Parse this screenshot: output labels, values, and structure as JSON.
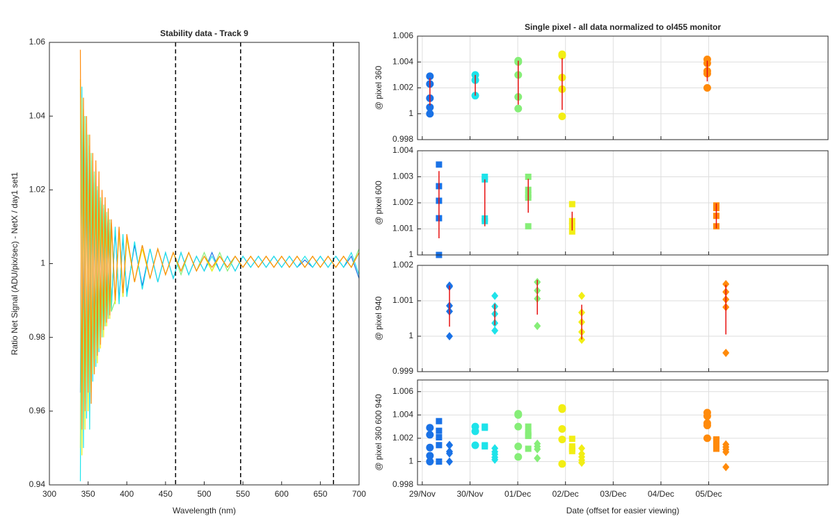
{
  "chart_data": [
    {
      "type": "line",
      "title": "Stability data - Track 9",
      "xlabel": "Wavelength (nm)",
      "ylabel": "Ratio Net Signal (ADU/pix/sec) - NetX / day1 set1",
      "xlim": [
        300,
        700
      ],
      "ylim": [
        0.94,
        1.06
      ],
      "xticks": [
        300,
        350,
        400,
        450,
        500,
        550,
        600,
        650,
        700
      ],
      "yticks": [
        0.94,
        0.96,
        0.98,
        1,
        1.02,
        1.04,
        1.06
      ],
      "grid": false,
      "vlines": [
        463,
        547,
        667
      ],
      "x": [
        340,
        342,
        344,
        346,
        348,
        350,
        352,
        354,
        356,
        358,
        360,
        362,
        364,
        366,
        368,
        370,
        372,
        374,
        376,
        378,
        380,
        385,
        390,
        395,
        400,
        410,
        420,
        430,
        440,
        450,
        460,
        470,
        480,
        490,
        500,
        510,
        520,
        530,
        540,
        550,
        560,
        570,
        580,
        590,
        600,
        610,
        620,
        630,
        640,
        650,
        660,
        670,
        680,
        690,
        700
      ],
      "series": [
        {
          "color": "#1a72e6",
          "values": [
            0.965,
            1.04,
            0.97,
            1.035,
            0.962,
            1.03,
            0.972,
            1.025,
            0.975,
            1.022,
            0.978,
            1.02,
            0.98,
            1.017,
            0.982,
            1.015,
            0.984,
            1.013,
            0.986,
            1.011,
            0.988,
            1.009,
            0.99,
            1.007,
            0.992,
            1.005,
            0.994,
            1.004,
            0.995,
            1.003,
            0.996,
            1.003,
            0.997,
            1.002,
            0.998,
            1.003,
            0.998,
            1.002,
            0.998,
            1.002,
            0.999,
            1.002,
            0.999,
            1.002,
            0.999,
            1.002,
            0.999,
            1.001,
            0.999,
            1.002,
            0.999,
            1.002,
            0.999,
            1.002,
            0.996
          ]
        },
        {
          "color": "#1ee3ea",
          "values": [
            0.941,
            1.048,
            0.95,
            1.04,
            0.958,
            1.032,
            0.955,
            1.028,
            0.968,
            1.024,
            0.972,
            1.02,
            0.976,
            1.018,
            0.98,
            1.015,
            0.983,
            1.013,
            0.985,
            1.011,
            0.987,
            1.01,
            0.989,
            1.008,
            0.991,
            1.006,
            0.993,
            1.004,
            0.995,
            1.003,
            0.996,
            1.003,
            0.997,
            1.002,
            0.998,
            1.002,
            0.998,
            1.002,
            0.998,
            1.002,
            0.999,
            1.002,
            0.999,
            1.002,
            0.999,
            1.002,
            0.999,
            1.002,
            0.999,
            1.002,
            0.999,
            1.002,
            0.999,
            1.003,
            0.997
          ]
        },
        {
          "color": "#86ee78",
          "values": [
            0.95,
            1.045,
            0.955,
            1.04,
            0.96,
            1.035,
            0.965,
            1.03,
            0.97,
            1.025,
            0.974,
            1.021,
            0.977,
            1.018,
            0.98,
            1.016,
            0.983,
            1.014,
            0.985,
            1.012,
            0.987,
            0.99,
            1.009,
            0.991,
            1.007,
            0.995,
            1.005,
            0.996,
            1.004,
            0.997,
            1.003,
            0.997,
            1.003,
            0.998,
            1.003,
            0.998,
            1.003,
            0.998,
            1.002,
            0.999,
            1.002,
            0.999,
            1.002,
            0.999,
            1.002,
            0.999,
            1.002,
            0.999,
            1.002,
            0.999,
            1.002,
            0.999,
            1.002,
            0.999,
            1.004
          ]
        },
        {
          "color": "#f2ee14",
          "values": [
            1.05,
            0.948,
            1.042,
            0.955,
            1.038,
            0.96,
            1.032,
            0.965,
            1.028,
            0.97,
            1.024,
            0.973,
            1.02,
            0.977,
            1.018,
            0.98,
            1.015,
            0.983,
            1.013,
            0.985,
            1.011,
            0.989,
            1.009,
            0.991,
            1.007,
            0.995,
            1.004,
            0.996,
            1.004,
            0.997,
            1.003,
            0.998,
            1.003,
            0.998,
            1.002,
            0.998,
            1.002,
            0.999,
            1.002,
            0.999,
            1.002,
            0.999,
            1.002,
            0.999,
            1.002,
            0.999,
            1.002,
            0.999,
            1.002,
            0.999,
            1.002,
            0.999,
            1.002,
            0.999,
            1.003
          ]
        },
        {
          "color": "#ff8a0a",
          "values": [
            1.058,
            0.955,
            1.045,
            0.96,
            1.04,
            0.965,
            1.035,
            0.962,
            1.03,
            0.97,
            1.028,
            0.975,
            1.025,
            0.978,
            1.02,
            0.982,
            1.018,
            0.984,
            1.015,
            0.986,
            1.012,
            0.99,
            1.01,
            0.992,
            1.008,
            0.995,
            1.005,
            0.996,
            1.004,
            0.997,
            1.003,
            0.998,
            1.003,
            0.998,
            1.002,
            0.999,
            1.002,
            0.999,
            1.002,
            0.999,
            1.002,
            0.999,
            1.002,
            0.999,
            1.002,
            0.999,
            1.002,
            0.999,
            1.002,
            0.999,
            1.002,
            0.999,
            1.002,
            0.999,
            1.003
          ]
        }
      ]
    },
    {
      "type": "scatter",
      "title": "Single pixel - all data normalized to ol455 monitor",
      "ylabel": "@ pixel 360",
      "marker": "circle",
      "ylim": [
        0.998,
        1.006
      ],
      "yticks": [
        0.998,
        1,
        1.002,
        1.004,
        1.006
      ],
      "grid": true,
      "errorbar_color": "#e81010",
      "series": [
        {
          "color": "#1a72e6",
          "x": 0.16,
          "values": [
            1.0029,
            1.0023,
            1.0012,
            1.0005,
            1.0
          ],
          "mean": 1.0017,
          "error": 0.00105
        },
        {
          "color": "#1ee3ea",
          "x": 1.11,
          "values": [
            1.003,
            1.0026,
            1.0014
          ],
          "mean": 1.0022,
          "error": 0.0008
        },
        {
          "color": "#86ee78",
          "x": 2.01,
          "values": [
            1.0041,
            1.004,
            1.003,
            1.0013,
            1.0004
          ],
          "mean": 1.0024,
          "error": 0.0017
        },
        {
          "color": "#f2ee14",
          "x": 2.93,
          "values": [
            1.0046,
            1.0045,
            1.0028,
            1.0019,
            0.9998
          ],
          "mean": 1.0023,
          "error": 0.002
        },
        {
          "color": "#ff8a0a",
          "x": 5.97,
          "values": [
            1.0042,
            1.0039,
            1.0033,
            1.0031,
            1.002
          ],
          "mean": 1.0033,
          "error": 0.0008
        }
      ]
    },
    {
      "type": "scatter",
      "ylabel": "@ pixel 600",
      "marker": "square",
      "ylim": [
        1,
        1.004
      ],
      "yticks": [
        1,
        1.001,
        1.002,
        1.003,
        1.004
      ],
      "grid": true,
      "errorbar_color": "#e81010",
      "series": [
        {
          "color": "#1a72e6",
          "x": 0.35,
          "values": [
            1.00347,
            1.00264,
            1.00208,
            1.00141,
            1.0
          ],
          "mean": 1.00193,
          "error": 0.00129
        },
        {
          "color": "#1ee3ea",
          "x": 1.31,
          "values": [
            1.003,
            1.0029,
            1.0014,
            1.0013
          ],
          "mean": 1.002,
          "error": 0.0009
        },
        {
          "color": "#86ee78",
          "x": 2.22,
          "values": [
            1.003,
            1.0025,
            1.0023,
            1.0022,
            1.0011
          ],
          "mean": 1.00227,
          "error": 0.00065
        },
        {
          "color": "#f2ee14",
          "x": 3.14,
          "values": [
            1.00195,
            1.0013,
            1.0011,
            1.0009
          ],
          "mean": 1.0013,
          "error": 0.00036
        },
        {
          "color": "#ff8a0a",
          "x": 6.16,
          "values": [
            1.0019,
            1.0018,
            1.0015,
            1.0011
          ],
          "mean": 1.0015,
          "error": 0.00048
        }
      ]
    },
    {
      "type": "scatter",
      "ylabel": "@ pixel 940",
      "marker": "diamond",
      "ylim": [
        0.999,
        1.002
      ],
      "yticks": [
        0.999,
        1,
        1.001,
        1.002
      ],
      "grid": true,
      "errorbar_color": "#e81010",
      "series": [
        {
          "color": "#1a72e6",
          "x": 0.57,
          "values": [
            1.00143,
            1.0014,
            1.00086,
            1.0007,
            1.0
          ],
          "mean": 1.00085,
          "error": 0.00058
        },
        {
          "color": "#1ee3ea",
          "x": 1.52,
          "values": [
            1.00114,
            1.00084,
            1.00063,
            1.00037,
            1.00016
          ],
          "mean": 1.00061,
          "error": 0.0003
        },
        {
          "color": "#86ee78",
          "x": 2.41,
          "values": [
            1.00153,
            1.00129,
            1.00106,
            1.00029
          ],
          "mean": 1.0011,
          "error": 0.00049
        },
        {
          "color": "#f2ee14",
          "x": 3.34,
          "values": [
            1.00114,
            1.00067,
            1.0004,
            1.00012,
            0.9999
          ],
          "mean": 1.0004,
          "error": 0.00049
        },
        {
          "color": "#ff8a0a",
          "x": 6.36,
          "values": [
            1.00147,
            1.00125,
            1.00104,
            1.00082,
            0.99953
          ],
          "mean": 1.00075,
          "error": 0.0007
        }
      ]
    },
    {
      "type": "overlay",
      "ylabel": "@ pixel 360  600  940",
      "xlabel": "Date (offset for easier viewing)",
      "xlim": [
        -0.1,
        8.5
      ],
      "ylim": [
        0.998,
        1.007
      ],
      "yticks": [
        0.998,
        1,
        1.002,
        1.004,
        1.006
      ],
      "grid": true,
      "xticks": [
        {
          "value": 0,
          "label": "29/Nov"
        },
        {
          "value": 1,
          "label": "30/Nov"
        },
        {
          "value": 2,
          "label": "01/Dec"
        },
        {
          "value": 3,
          "label": "02/Dec"
        },
        {
          "value": 4,
          "label": "03/Dec"
        },
        {
          "value": 5,
          "label": "04/Dec"
        },
        {
          "value": 6,
          "label": "05/Dec"
        }
      ]
    }
  ]
}
